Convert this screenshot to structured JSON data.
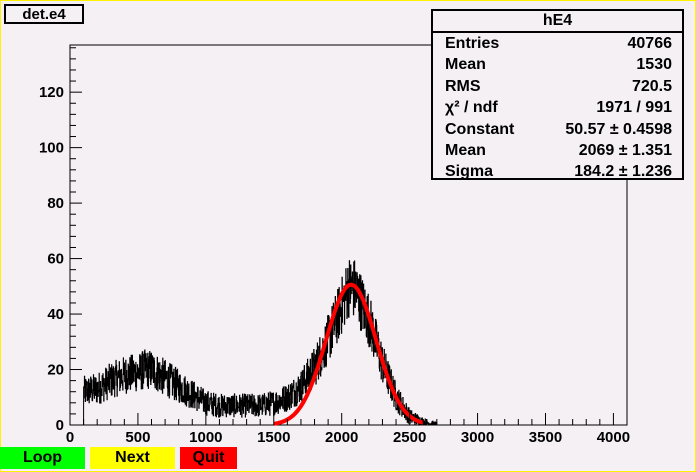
{
  "canvas": {
    "title": "det.e4"
  },
  "stats": {
    "title": "hE4",
    "rows": [
      {
        "label": "Entries",
        "value": "40766"
      },
      {
        "label": "Mean",
        "value": "1530"
      },
      {
        "label": "RMS",
        "value": "720.5"
      },
      {
        "label": "χ² / ndf",
        "value": "1971 / 991"
      },
      {
        "label": "Constant",
        "value": "50.57 ± 0.4598"
      },
      {
        "label": "Mean",
        "value": "2069 ± 1.351"
      },
      {
        "label": "Sigma",
        "value": "184.2 ± 1.236"
      }
    ]
  },
  "buttons": {
    "loop": "Loop",
    "next": "Next",
    "quit": "Quit"
  },
  "colors": {
    "fit": "#ff0000",
    "histogram": "#000000",
    "background": "#f4f0f4",
    "border": "#fff200"
  },
  "chart_data": {
    "type": "bar",
    "title": "hE4",
    "xlabel": "",
    "ylabel": "",
    "xlim": [
      0,
      4100
    ],
    "ylim": [
      0,
      137
    ],
    "x_ticks": [
      0,
      500,
      1000,
      1500,
      2000,
      2500,
      3000,
      3500,
      4000
    ],
    "y_ticks": [
      0,
      20,
      40,
      60,
      80,
      100,
      120
    ],
    "histogram_envelope": [
      [
        100,
        12
      ],
      [
        200,
        13
      ],
      [
        300,
        16
      ],
      [
        400,
        18
      ],
      [
        500,
        19
      ],
      [
        550,
        20
      ],
      [
        600,
        20
      ],
      [
        700,
        17
      ],
      [
        800,
        14
      ],
      [
        900,
        11
      ],
      [
        1000,
        8
      ],
      [
        1100,
        7
      ],
      [
        1200,
        7
      ],
      [
        1300,
        7
      ],
      [
        1400,
        7
      ],
      [
        1500,
        8
      ],
      [
        1600,
        10
      ],
      [
        1700,
        14
      ],
      [
        1800,
        21
      ],
      [
        1900,
        31
      ],
      [
        2000,
        43
      ],
      [
        2050,
        50
      ],
      [
        2100,
        49
      ],
      [
        2200,
        38
      ],
      [
        2300,
        22
      ],
      [
        2400,
        10
      ],
      [
        2500,
        3
      ],
      [
        2600,
        1
      ],
      [
        2700,
        0
      ]
    ],
    "fit": {
      "function": "gaus",
      "constant": 50.57,
      "mean": 2069,
      "sigma": 184.2,
      "range": [
        1500,
        2600
      ]
    }
  }
}
